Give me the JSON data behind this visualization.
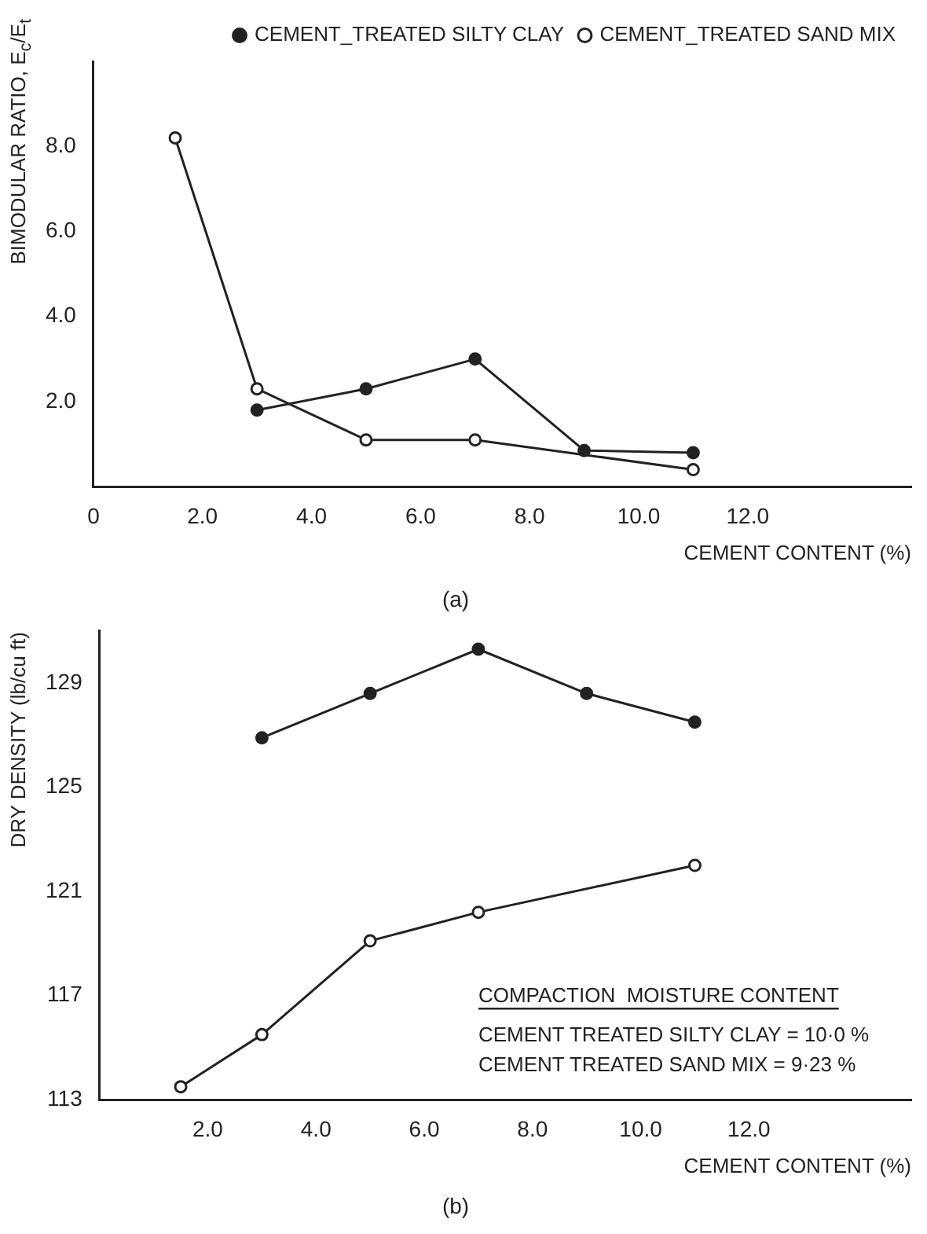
{
  "chart_data": [
    {
      "type": "line",
      "ylabel": "BIMODULAR RATIO, E$_{c}$/E$_{t}$",
      "xlabel": "CEMENT CONTENT (%)",
      "annotations": [
        "(a)"
      ],
      "xlim": [
        0,
        15
      ],
      "xticks": [
        0,
        {
          "value": 2,
          "label": "2.0"
        },
        {
          "value": 4,
          "label": "4.0"
        },
        {
          "value": 6,
          "label": "6.0"
        },
        {
          "value": 8,
          "label": "8.0"
        },
        {
          "value": 10,
          "label": "10.0"
        },
        {
          "value": 12,
          "label": "12.0"
        }
      ],
      "ylim": [
        0,
        10
      ],
      "yticks": [
        {
          "value": 2,
          "label": "2.0"
        },
        {
          "value": 4,
          "label": "4.0"
        },
        {
          "value": 6,
          "label": "6.0"
        },
        {
          "value": 8,
          "label": "8.0"
        }
      ],
      "grid": false,
      "legend": "top right",
      "series": [
        {
          "name": "CEMENT_TREATED SILTY CLAY",
          "color": "#222222",
          "marker": "circle",
          "x": [
            3,
            5,
            7,
            9,
            11
          ],
          "values": [
            1.8,
            2.3,
            3.0,
            0.85,
            0.8
          ]
        },
        {
          "name": "CEMENT_TREATED SAND MIX",
          "color": "#222222",
          "marker": "open-circle",
          "x": [
            1.5,
            3,
            5,
            7,
            11
          ],
          "values": [
            8.2,
            2.3,
            1.1,
            1.1,
            0.4
          ]
        }
      ]
    },
    {
      "type": "line",
      "ylabel": "DRY DENSITY (lb/cu ft)",
      "xlabel": "CEMENT CONTENT (%)",
      "annotations": [
        "(b)",
        "COMPACTION  MOISTURE CONTENT",
        "CEMENT TREATED SILTY CLAY = 10·0 %",
        "CEMENT TREATED SAND MIX = 9·23 %"
      ],
      "xlim": [
        0,
        15
      ],
      "xticks": [
        {
          "value": 2,
          "label": "2.0"
        },
        {
          "value": 4,
          "label": "4.0"
        },
        {
          "value": 6,
          "label": "6.0"
        },
        {
          "value": 8,
          "label": "8.0"
        },
        {
          "value": 10,
          "label": "10.0"
        },
        {
          "value": 12,
          "label": "12.0"
        }
      ],
      "ylim": [
        113,
        131
      ],
      "yticks": [
        113,
        117,
        121,
        125,
        129
      ],
      "grid": false,
      "series": [
        {
          "color": "#222222",
          "marker": "circle",
          "x": [
            3,
            5,
            7,
            9,
            11
          ],
          "values": [
            126.9,
            128.6,
            130.3,
            128.6,
            127.5
          ]
        },
        {
          "color": "#222222",
          "marker": "open-circle",
          "x": [
            1.5,
            3,
            5,
            7,
            11
          ],
          "values": [
            113.5,
            115.5,
            119.1,
            120.2,
            122.0
          ]
        }
      ]
    }
  ]
}
